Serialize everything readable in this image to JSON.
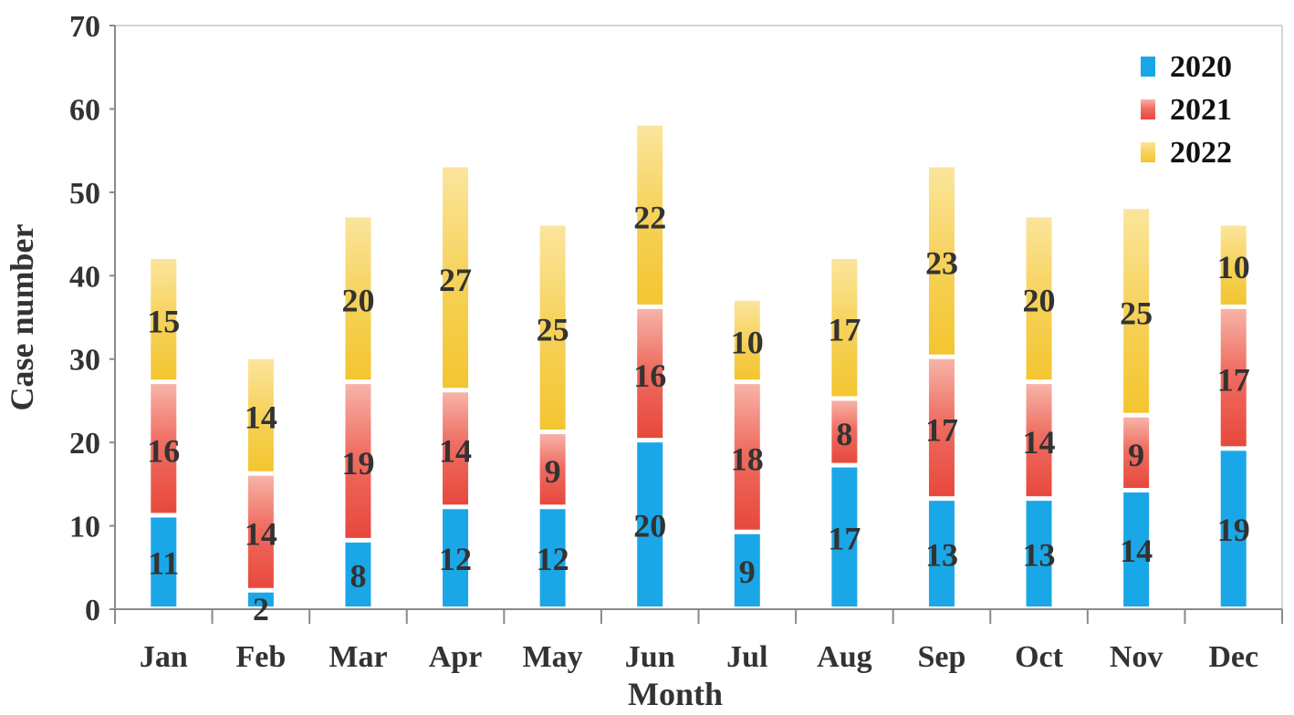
{
  "chart_data": {
    "type": "bar",
    "stacked": true,
    "title": "",
    "xlabel": "Month",
    "ylabel": "Case number",
    "ylim": [
      0,
      70
    ],
    "yticks": [
      0,
      10,
      20,
      30,
      40,
      50,
      60,
      70
    ],
    "grid": false,
    "legend_position": "top-right",
    "categories": [
      "Jan",
      "Feb",
      "Mar",
      "Apr",
      "May",
      "Jun",
      "Jul",
      "Aug",
      "Sep",
      "Oct",
      "Nov",
      "Dec"
    ],
    "series": [
      {
        "name": "2020",
        "color": "#1aa7e8",
        "values": [
          11,
          2,
          8,
          12,
          12,
          20,
          9,
          17,
          13,
          13,
          14,
          19
        ]
      },
      {
        "name": "2021",
        "color": "#e8483c",
        "values": [
          16,
          14,
          19,
          14,
          9,
          16,
          18,
          8,
          17,
          14,
          9,
          17
        ]
      },
      {
        "name": "2022",
        "color": "#f3c530",
        "values": [
          15,
          14,
          20,
          27,
          25,
          22,
          10,
          17,
          23,
          20,
          25,
          10
        ]
      }
    ]
  }
}
